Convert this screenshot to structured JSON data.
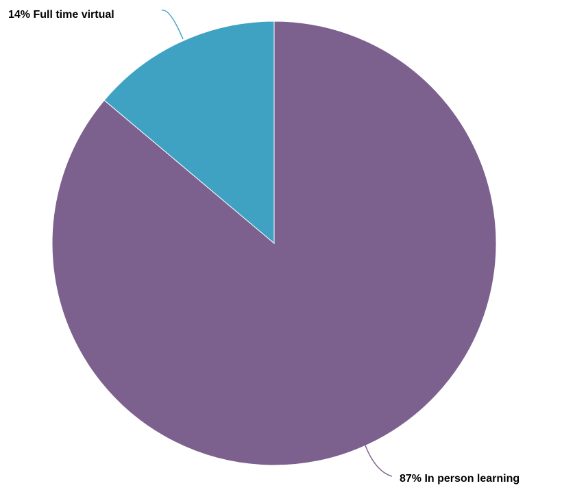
{
  "chart_data": {
    "type": "pie",
    "title": "",
    "slices": [
      {
        "label": "87% In person learning",
        "category": "In person learning",
        "value": 87,
        "color": "#7C618F"
      },
      {
        "label": "14% Full time virtual",
        "category": "Full time virtual",
        "value": 14,
        "color": "#3FA2C2"
      }
    ]
  }
}
